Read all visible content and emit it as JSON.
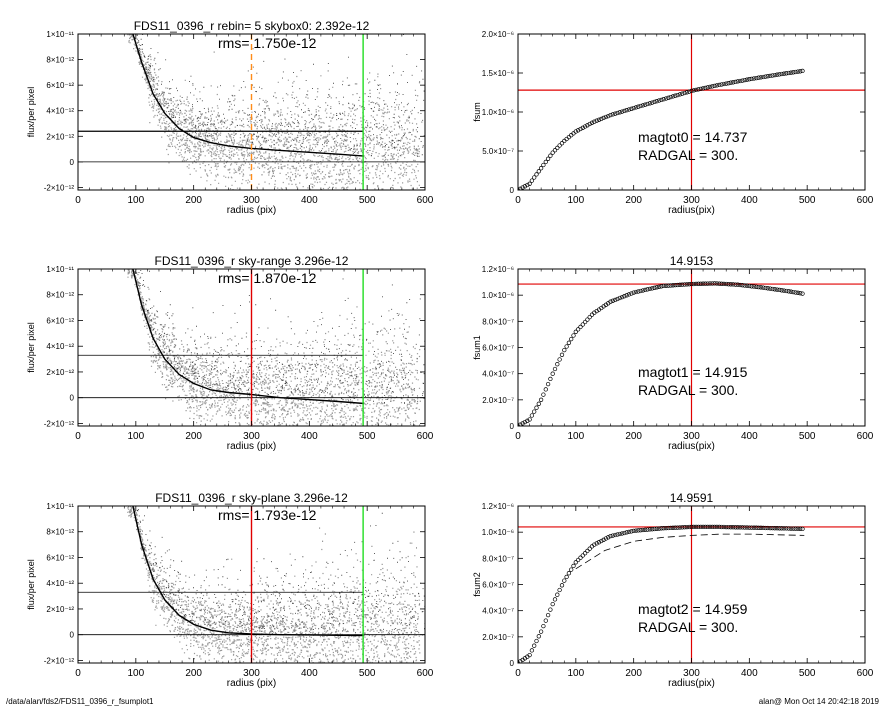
{
  "footer": {
    "path": "/data/alan/fds2/FDS11_0396_r_fsumplot1",
    "stamp": "alan@  Mon Oct 14 20:42:18 2019"
  },
  "colors": {
    "red": "#e00000",
    "green": "#22dd22",
    "orange": "#ff8c1a",
    "scatter": "#9a9a9a",
    "scatter_light": "#c8c8c8",
    "curve": "#000000"
  },
  "chart_data": [
    {
      "id": "left-1",
      "type": "scatter",
      "title": "FDS11_0396_r rebin= 5    skybox0:  2.392e-12",
      "annotation": "rms= 1.750e-12",
      "xlabel": "radius (pix)",
      "ylabel": "flux/per pixel",
      "xlim": [
        0,
        600
      ],
      "ylim": [
        -2.2e-12,
        1e-11
      ],
      "xticks": [
        "0",
        "100",
        "200",
        "300",
        "400",
        "500",
        "600"
      ],
      "yticks": [
        {
          "value": 1e-11,
          "label": "1×10⁻¹¹"
        },
        {
          "value": 8e-12,
          "label": "8×10⁻¹²"
        },
        {
          "value": 6e-12,
          "label": "6×10⁻¹²"
        },
        {
          "value": 4e-12,
          "label": "4×10⁻¹²"
        },
        {
          "value": 2e-12,
          "label": "2×10⁻¹²"
        },
        {
          "value": 0,
          "label": "0"
        },
        {
          "value": -2e-12,
          "label": "-2×10⁻¹²"
        }
      ],
      "sky_level": 2.392e-12,
      "vlines": [
        {
          "x": 300,
          "color": "orange",
          "dashed": true
        },
        {
          "x": 493,
          "color": "green",
          "dashed": false
        }
      ],
      "profile": {
        "x": [
          95,
          110,
          130,
          150,
          175,
          200,
          230,
          260,
          300,
          350,
          400,
          450,
          495
        ],
        "y": [
          1e-11,
          7.8e-12,
          5.3e-12,
          3.8e-12,
          2.6e-12,
          1.9e-12,
          1.5e-12,
          1.25e-12,
          1.05e-12,
          9e-13,
          7.5e-13,
          6e-13,
          4.5e-13
        ]
      },
      "scatter_spread_far": 2.2e-12
    },
    {
      "id": "right-1",
      "type": "scatter",
      "title": "",
      "xlabel": "radius(pix)",
      "ylabel": "fsum",
      "xlim": [
        0,
        600
      ],
      "ylim": [
        0,
        2e-06
      ],
      "xticks": [
        "0",
        "100",
        "200",
        "300",
        "400",
        "500",
        "600"
      ],
      "yticks": [
        {
          "value": 2e-06,
          "label": "2.0×10⁻⁶"
        },
        {
          "value": 1.5e-06,
          "label": "1.5×10⁻⁶"
        },
        {
          "value": 1e-06,
          "label": "1.0×10⁻⁶"
        },
        {
          "value": 5e-07,
          "label": "5.0×10⁻⁷"
        },
        {
          "value": 0,
          "label": "0"
        }
      ],
      "annotations": [
        "magtot0 =  14.737",
        "RADGAL =    300."
      ],
      "hline": 1.28e-06,
      "vline": 300,
      "curve": {
        "x": [
          0,
          20,
          40,
          60,
          80,
          100,
          130,
          160,
          200,
          250,
          300,
          350,
          400,
          450,
          495
        ],
        "y": [
          0,
          8e-08,
          2.8e-07,
          4.8e-07,
          6.3e-07,
          7.5e-07,
          8.7e-07,
          9.6e-07,
          1.05e-06,
          1.16e-06,
          1.27e-06,
          1.35e-06,
          1.42e-06,
          1.48e-06,
          1.53e-06
        ]
      }
    },
    {
      "id": "left-2",
      "type": "scatter",
      "title": "FDS11_0396_r sky-range  3.296e-12",
      "annotation": "rms= 1.870e-12",
      "xlabel": "radius (pix)",
      "ylabel": "flux/per pixel",
      "xlim": [
        0,
        600
      ],
      "ylim": [
        -2.2e-12,
        1e-11
      ],
      "xticks": [
        "0",
        "100",
        "200",
        "300",
        "400",
        "500",
        "600"
      ],
      "yticks": [
        {
          "value": 1e-11,
          "label": "1×10⁻¹¹"
        },
        {
          "value": 8e-12,
          "label": "8×10⁻¹²"
        },
        {
          "value": 6e-12,
          "label": "6×10⁻¹²"
        },
        {
          "value": 4e-12,
          "label": "4×10⁻¹²"
        },
        {
          "value": 2e-12,
          "label": "2×10⁻¹²"
        },
        {
          "value": 0,
          "label": "0"
        },
        {
          "value": -2e-12,
          "label": "-2×10⁻¹²"
        }
      ],
      "sky_level": 3.296e-12,
      "vlines": [
        {
          "x": 300,
          "color": "red",
          "dashed": false
        },
        {
          "x": 493,
          "color": "green",
          "dashed": false
        }
      ],
      "profile": {
        "x": [
          95,
          110,
          130,
          150,
          175,
          200,
          230,
          260,
          300,
          350,
          400,
          450,
          495
        ],
        "y": [
          1e-11,
          7.2e-12,
          4.6e-12,
          3e-12,
          1.8e-12,
          1.1e-12,
          6e-13,
          4e-13,
          2.5e-13,
          0.0,
          -1.5e-13,
          -3e-13,
          -4.5e-13
        ]
      },
      "scatter_spread_far": 2.4e-12
    },
    {
      "id": "right-2",
      "type": "scatter",
      "title": "14.9153",
      "xlabel": "radius(pix)",
      "ylabel": "fsum1",
      "xlim": [
        0,
        600
      ],
      "ylim": [
        0,
        1.2e-06
      ],
      "xticks": [
        "0",
        "100",
        "200",
        "300",
        "400",
        "500",
        "600"
      ],
      "yticks": [
        {
          "value": 1.2e-06,
          "label": "1.2×10⁻⁶"
        },
        {
          "value": 1e-06,
          "label": "1.0×10⁻⁶"
        },
        {
          "value": 8e-07,
          "label": "8.0×10⁻⁷"
        },
        {
          "value": 6e-07,
          "label": "6.0×10⁻⁷"
        },
        {
          "value": 4e-07,
          "label": "4.0×10⁻⁷"
        },
        {
          "value": 2e-07,
          "label": "2.0×10⁻⁷"
        },
        {
          "value": 0,
          "label": "0"
        }
      ],
      "annotations": [
        "magtot1 =  14.915",
        "RADGAL =    300."
      ],
      "hline": 1.085e-06,
      "vline": 300,
      "curve": {
        "x": [
          0,
          20,
          40,
          60,
          80,
          100,
          130,
          160,
          200,
          250,
          300,
          340,
          380,
          420,
          460,
          495
        ],
        "y": [
          0,
          5e-08,
          2e-07,
          4e-07,
          5.8e-07,
          7.2e-07,
          8.6e-07,
          9.5e-07,
          1.02e-06,
          1.07e-06,
          1.085e-06,
          1.09e-06,
          1.08e-06,
          1.06e-06,
          1.035e-06,
          1.01e-06
        ]
      }
    },
    {
      "id": "left-3",
      "type": "scatter",
      "title": "FDS11_0396_r sky-plane  3.296e-12",
      "annotation": "rms= 1.793e-12",
      "xlabel": "radius (pix)",
      "ylabel": "flux/per pixel",
      "xlim": [
        0,
        600
      ],
      "ylim": [
        -2.2e-12,
        1e-11
      ],
      "xticks": [
        "0",
        "100",
        "200",
        "300",
        "400",
        "500",
        "600"
      ],
      "yticks": [
        {
          "value": 1e-11,
          "label": "1×10⁻¹¹"
        },
        {
          "value": 8e-12,
          "label": "8×10⁻¹²"
        },
        {
          "value": 6e-12,
          "label": "6×10⁻¹²"
        },
        {
          "value": 4e-12,
          "label": "4×10⁻¹²"
        },
        {
          "value": 2e-12,
          "label": "2×10⁻¹²"
        },
        {
          "value": 0,
          "label": "0"
        },
        {
          "value": -2e-12,
          "label": "-2×10⁻¹²"
        }
      ],
      "sky_level": 3.296e-12,
      "vlines": [
        {
          "x": 300,
          "color": "red",
          "dashed": false
        },
        {
          "x": 493,
          "color": "green",
          "dashed": false
        }
      ],
      "profile": {
        "x": [
          95,
          110,
          130,
          150,
          175,
          200,
          230,
          260,
          300,
          350,
          400,
          450,
          495
        ],
        "y": [
          1e-11,
          7e-12,
          4.3e-12,
          2.7e-12,
          1.5e-12,
          8e-13,
          3.5e-13,
          1.5e-13,
          5e-14,
          0.0,
          -2e-14,
          -5e-14,
          -7e-14
        ]
      },
      "scatter_spread_far": 2.1e-12
    },
    {
      "id": "right-3",
      "type": "scatter",
      "title": "14.9591",
      "xlabel": "radius(pix)",
      "ylabel": "fsum2",
      "xlim": [
        0,
        600
      ],
      "ylim": [
        0,
        1.2e-06
      ],
      "xticks": [
        "0",
        "100",
        "200",
        "300",
        "400",
        "500",
        "600"
      ],
      "yticks": [
        {
          "value": 1.2e-06,
          "label": "1.2×10⁻⁶"
        },
        {
          "value": 1e-06,
          "label": "1.0×10⁻⁶"
        },
        {
          "value": 8e-07,
          "label": "8.0×10⁻⁷"
        },
        {
          "value": 6e-07,
          "label": "6.0×10⁻⁷"
        },
        {
          "value": 4e-07,
          "label": "4.0×10⁻⁷"
        },
        {
          "value": 2e-07,
          "label": "2.0×10⁻⁷"
        },
        {
          "value": 0,
          "label": "0"
        }
      ],
      "annotations": [
        "magtot2 =  14.959",
        "RADGAL =    300."
      ],
      "hline": 1.04e-06,
      "vline": 300,
      "curve": {
        "x": [
          0,
          20,
          40,
          60,
          80,
          100,
          130,
          160,
          200,
          250,
          300,
          350,
          400,
          450,
          495
        ],
        "y": [
          0,
          6e-08,
          2.4e-07,
          4.5e-07,
          6.3e-07,
          7.7e-07,
          9e-07,
          9.7e-07,
          1.01e-06,
          1.03e-06,
          1.04e-06,
          1.04e-06,
          1.035e-06,
          1.03e-06,
          1.025e-06
        ]
      },
      "dashed_curve": {
        "x": [
          100,
          150,
          200,
          250,
          300,
          350,
          400,
          450,
          495
        ],
        "y": [
          7.2e-07,
          8.6e-07,
          9.3e-07,
          9.6e-07,
          9.75e-07,
          9.85e-07,
          9.85e-07,
          9.8e-07,
          9.75e-07
        ]
      }
    }
  ]
}
